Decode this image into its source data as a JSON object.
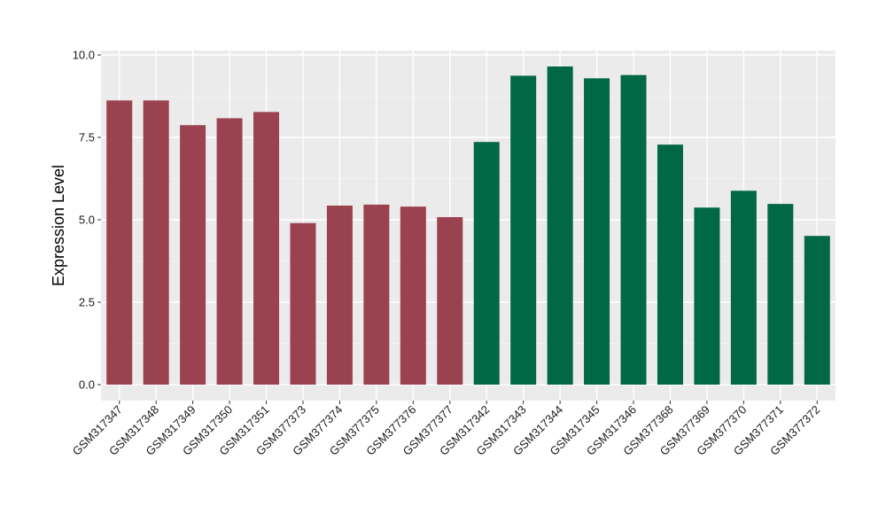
{
  "chart_data": {
    "type": "bar",
    "title": "",
    "xlabel": "",
    "ylabel": "Expression Level",
    "ylim": [
      0,
      10
    ],
    "yticks": [
      "0.0",
      "2.5",
      "5.0",
      "7.5",
      "10.0"
    ],
    "grid": true,
    "legend": "none",
    "background_color": "#ebebeb",
    "categories": [
      "GSM317347",
      "GSM317348",
      "GSM317349",
      "GSM317350",
      "GSM317351",
      "GSM377373",
      "GSM377374",
      "GSM377375",
      "GSM377376",
      "GSM377377",
      "GSM317342",
      "GSM317343",
      "GSM317344",
      "GSM317345",
      "GSM317346",
      "GSM377368",
      "GSM377369",
      "GSM377370",
      "GSM377371",
      "GSM377372"
    ],
    "values": [
      8.62,
      8.62,
      7.87,
      8.08,
      8.27,
      4.9,
      5.43,
      5.46,
      5.4,
      5.08,
      7.36,
      9.37,
      9.65,
      9.29,
      9.39,
      7.28,
      5.37,
      5.88,
      5.48,
      4.51
    ],
    "bar_colors": [
      "#9b4250",
      "#9b4250",
      "#9b4250",
      "#9b4250",
      "#9b4250",
      "#9b4250",
      "#9b4250",
      "#9b4250",
      "#9b4250",
      "#9b4250",
      "#006845",
      "#006845",
      "#006845",
      "#006845",
      "#006845",
      "#006845",
      "#006845",
      "#006845",
      "#006845",
      "#006845"
    ]
  }
}
